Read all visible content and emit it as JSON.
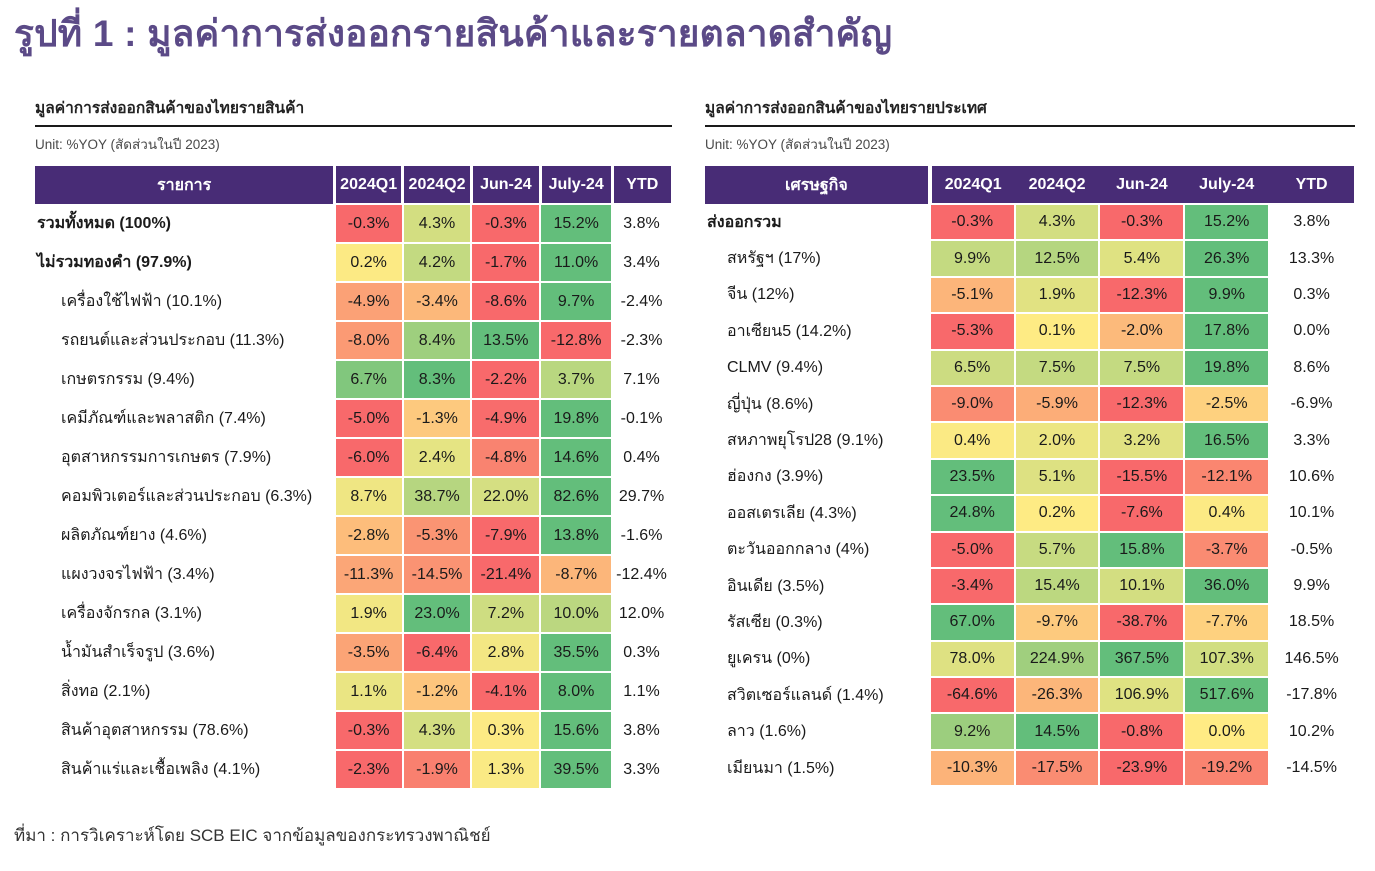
{
  "title": "รูปที่ 1 : มูลค่าการส่งออกรายสินค้าและรายตลาดสำคัญ",
  "source": "ที่มา : การวิเคราะห์โดย SCB EIC จากข้อมูลของกระทรวงพาณิชย์",
  "colors": {
    "title": "#5B4A87",
    "header_bg": "#482C76",
    "header_text": "#FFFFFF",
    "scale_min": "#F8696B",
    "scale_mid": "#FFEB84",
    "scale_max": "#63BE7B"
  },
  "chart_data": [
    {
      "type": "heatmap",
      "title": "มูลค่าการส่งออกสินค้าของไทยรายสินค้า",
      "unit": "Unit: %YOY (สัดส่วนในปี 2023)",
      "value_unit": "%",
      "color_rule": "per-row red-yellow-green, yellow anchored at 0, YTD uncolored",
      "columns": [
        "รายการ",
        "2024Q1",
        "2024Q2",
        "Jun-24",
        "July-24",
        "YTD"
      ],
      "rows": [
        {
          "label": "รวมทั้งหมด (100%)",
          "bold": true,
          "values": [
            -0.3,
            4.3,
            -0.3,
            15.2
          ],
          "ytd": 3.8
        },
        {
          "label": "ไม่รวมทองคำ (97.9%)",
          "bold": true,
          "values": [
            0.2,
            4.2,
            -1.7,
            11.0
          ],
          "ytd": 3.4
        },
        {
          "label": "เครื่องใช้ไฟฟ้า (10.1%)",
          "bold": false,
          "values": [
            -4.9,
            -3.4,
            -8.6,
            9.7
          ],
          "ytd": -2.4
        },
        {
          "label": "รถยนต์และส่วนประกอบ (11.3%)",
          "bold": false,
          "values": [
            -8.0,
            8.4,
            13.5,
            -12.8
          ],
          "ytd": -2.3
        },
        {
          "label": "เกษตรกรรม (9.4%)",
          "bold": false,
          "values": [
            6.7,
            8.3,
            -2.2,
            3.7
          ],
          "ytd": 7.1
        },
        {
          "label": "เคมีภัณฑ์และพลาสติก (7.4%)",
          "bold": false,
          "values": [
            -5.0,
            -1.3,
            -4.9,
            19.8
          ],
          "ytd": -0.1
        },
        {
          "label": "อุตสาหกรรมการเกษตร (7.9%)",
          "bold": false,
          "values": [
            -6.0,
            2.4,
            -4.8,
            14.6
          ],
          "ytd": 0.4
        },
        {
          "label": "คอมพิวเตอร์และส่วนประกอบ (6.3%)",
          "bold": false,
          "values": [
            8.7,
            38.7,
            22.0,
            82.6
          ],
          "ytd": 29.7
        },
        {
          "label": "ผลิตภัณฑ์ยาง (4.6%)",
          "bold": false,
          "values": [
            -2.8,
            -5.3,
            -7.9,
            13.8
          ],
          "ytd": -1.6
        },
        {
          "label": "แผงวงจรไฟฟ้า (3.4%)",
          "bold": false,
          "values": [
            -11.3,
            -14.5,
            -21.4,
            -8.7
          ],
          "ytd": -12.4
        },
        {
          "label": "เครื่องจักรกล (3.1%)",
          "bold": false,
          "values": [
            1.9,
            23.0,
            7.2,
            10.0
          ],
          "ytd": 12.0
        },
        {
          "label": "น้ำมันสำเร็จรูป (3.6%)",
          "bold": false,
          "values": [
            -3.5,
            -6.4,
            2.8,
            35.5
          ],
          "ytd": 0.3
        },
        {
          "label": "สิ่งทอ (2.1%)",
          "bold": false,
          "values": [
            1.1,
            -1.2,
            -4.1,
            8.0
          ],
          "ytd": 1.1
        },
        {
          "label": "สินค้าอุตสาหกรรม (78.6%)",
          "bold": false,
          "values": [
            -0.3,
            4.3,
            0.3,
            15.6
          ],
          "ytd": 3.8
        },
        {
          "label": "สินค้าแร่และเชื้อเพลิง (4.1%)",
          "bold": false,
          "values": [
            -2.3,
            -1.9,
            1.3,
            39.5
          ],
          "ytd": 3.3
        }
      ]
    },
    {
      "type": "heatmap",
      "title": "มูลค่าการส่งออกสินค้าของไทยรายประเทศ",
      "unit": "Unit: %YOY (สัดส่วนในปี 2023)",
      "value_unit": "%",
      "color_rule": "per-row red-yellow-green, yellow anchored at 0, YTD uncolored",
      "columns": [
        "เศรษฐกิจ",
        "2024Q1",
        "2024Q2",
        "Jun-24",
        "July-24",
        "YTD"
      ],
      "rows": [
        {
          "label": "ส่งออกรวม",
          "bold": true,
          "values": [
            -0.3,
            4.3,
            -0.3,
            15.2
          ],
          "ytd": 3.8
        },
        {
          "label": "สหรัฐฯ (17%)",
          "bold": false,
          "values": [
            9.9,
            12.5,
            5.4,
            26.3
          ],
          "ytd": 13.3
        },
        {
          "label": "จีน (12%)",
          "bold": false,
          "values": [
            -5.1,
            1.9,
            -12.3,
            9.9
          ],
          "ytd": 0.3
        },
        {
          "label": "อาเซียน5 (14.2%)",
          "bold": false,
          "values": [
            -5.3,
            0.1,
            -2.0,
            17.8
          ],
          "ytd": 0.0
        },
        {
          "label": "CLMV (9.4%)",
          "bold": false,
          "values": [
            6.5,
            7.5,
            7.5,
            19.8
          ],
          "ytd": 8.6
        },
        {
          "label": "ญี่ปุ่น (8.6%)",
          "bold": false,
          "values": [
            -9.0,
            -5.9,
            -12.3,
            -2.5
          ],
          "ytd": -6.9
        },
        {
          "label": "สหภาพยุโรป28 (9.1%)",
          "bold": false,
          "values": [
            0.4,
            2.0,
            3.2,
            16.5
          ],
          "ytd": 3.3
        },
        {
          "label": "ฮ่องกง (3.9%)",
          "bold": false,
          "values": [
            23.5,
            5.1,
            -15.5,
            -12.1
          ],
          "ytd": 10.6
        },
        {
          "label": "ออสเตรเลีย (4.3%)",
          "bold": false,
          "values": [
            24.8,
            0.2,
            -7.6,
            0.4
          ],
          "ytd": 10.1
        },
        {
          "label": "ตะวันออกกลาง (4%)",
          "bold": false,
          "values": [
            -5.0,
            5.7,
            15.8,
            -3.7
          ],
          "ytd": -0.5
        },
        {
          "label": "อินเดีย (3.5%)",
          "bold": false,
          "values": [
            -3.4,
            15.4,
            10.1,
            36.0
          ],
          "ytd": 9.9
        },
        {
          "label": "รัสเซีย (0.3%)",
          "bold": false,
          "values": [
            67.0,
            -9.7,
            -38.7,
            -7.7
          ],
          "ytd": 18.5
        },
        {
          "label": "ยูเครน (0%)",
          "bold": false,
          "values": [
            78.0,
            224.9,
            367.5,
            107.3
          ],
          "ytd": 146.5
        },
        {
          "label": "สวิตเซอร์แลนด์ (1.4%)",
          "bold": false,
          "values": [
            -64.6,
            -26.3,
            106.9,
            517.6
          ],
          "ytd": -17.8
        },
        {
          "label": "ลาว (1.6%)",
          "bold": false,
          "values": [
            9.2,
            14.5,
            -0.8,
            0.0
          ],
          "ytd": 10.2
        },
        {
          "label": "เมียนมา (1.5%)",
          "bold": false,
          "values": [
            -10.3,
            -17.5,
            -23.9,
            -19.2
          ],
          "ytd": -14.5
        }
      ]
    }
  ]
}
